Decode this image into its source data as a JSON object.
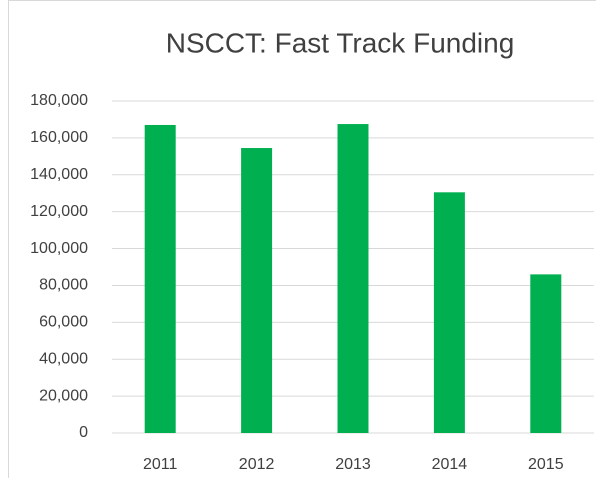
{
  "chart_data": {
    "type": "bar",
    "title": "NSCCT: Fast Track Funding",
    "categories": [
      "2011",
      "2012",
      "2013",
      "2014",
      "2015"
    ],
    "values": [
      167000,
      154500,
      167500,
      130500,
      86000
    ],
    "color": "#00b050",
    "ylim": [
      0,
      180000
    ],
    "yticks": [
      0,
      {
        "value": 20000,
        "label": "20,000"
      },
      {
        "value": 40000,
        "label": "40,000"
      },
      {
        "value": 60000,
        "label": "60,000"
      },
      {
        "value": 80000,
        "label": "80,000"
      },
      {
        "value": 100000,
        "label": "100,000"
      },
      {
        "value": 120000,
        "label": "120,000"
      },
      {
        "value": 140000,
        "label": "140,000"
      },
      {
        "value": 160000,
        "label": "160,000"
      },
      {
        "value": 180000,
        "label": "180,000"
      }
    ],
    "grid": true
  }
}
